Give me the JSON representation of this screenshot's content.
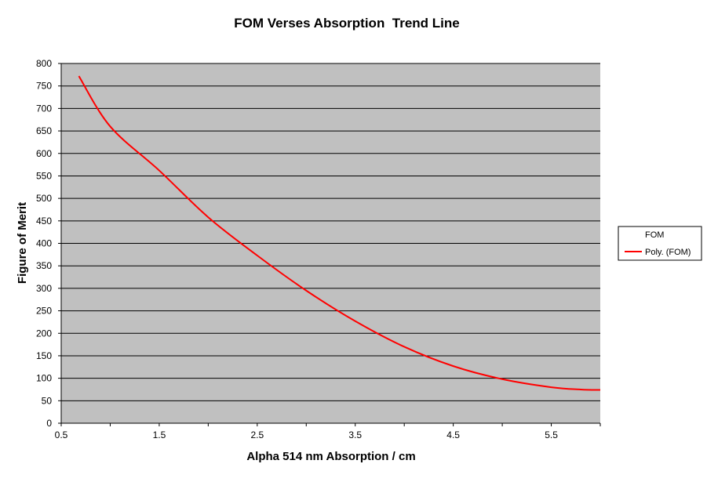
{
  "chart_data": {
    "type": "line",
    "title": "FOM Verses Absorption  Trend Line",
    "xlabel": "Alpha 514 nm Absorption / cm",
    "ylabel": "Figure of Merit",
    "xlim": [
      0.5,
      6.0
    ],
    "ylim": [
      0,
      800
    ],
    "xticks": [
      0.5,
      1.5,
      2.5,
      3.5,
      4.5,
      5.5
    ],
    "xtick_labels": [
      "0.5",
      "1.5",
      "2.5",
      "3.5",
      "4.5",
      "5.5"
    ],
    "yticks": [
      0,
      50,
      100,
      150,
      200,
      250,
      300,
      350,
      400,
      450,
      500,
      550,
      600,
      650,
      700,
      750,
      800
    ],
    "ytick_labels": [
      "0",
      "50",
      "100",
      "150",
      "200",
      "250",
      "300",
      "350",
      "400",
      "450",
      "500",
      "550",
      "600",
      "650",
      "700",
      "750",
      "800"
    ],
    "grid": "horizontal",
    "plot_background": "#c0c0c0",
    "legend_position": "right",
    "series": [
      {
        "name": "FOM",
        "color": "#000000",
        "points": []
      },
      {
        "name": "Poly. (FOM)",
        "color": "#ff0000",
        "points": [
          [
            0.68,
            772
          ],
          [
            1.0,
            660
          ],
          [
            1.5,
            562
          ],
          [
            2.0,
            458
          ],
          [
            2.5,
            373
          ],
          [
            3.0,
            295
          ],
          [
            3.5,
            227
          ],
          [
            4.0,
            170
          ],
          [
            4.5,
            127
          ],
          [
            5.0,
            98
          ],
          [
            5.5,
            80
          ],
          [
            5.8,
            75
          ],
          [
            6.0,
            74
          ]
        ]
      }
    ]
  }
}
